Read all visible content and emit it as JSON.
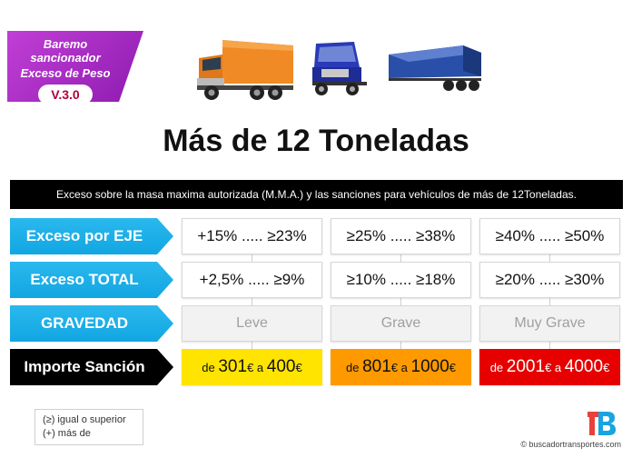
{
  "badge": {
    "line1": "Baremo sancionador",
    "line2": "Exceso de  Peso",
    "version": "V.3.0"
  },
  "title": "Más de 12 Toneladas",
  "description": "Exceso sobre la masa maxima autorizada (M.M.A.) y las sanciones para vehículos de más de 12Toneladas.",
  "rows": {
    "eje": {
      "label": "Exceso por EJE",
      "values": [
        "+15% ..... ≥23%",
        "≥25% ..... ≥38%",
        "≥40% ..... ≥50%"
      ]
    },
    "total": {
      "label": "Exceso TOTAL",
      "values": [
        "+2,5% ..... ≥9%",
        "≥10% ..... ≥18%",
        "≥20% ..... ≥30%"
      ]
    },
    "gravedad": {
      "label": "GRAVEDAD",
      "values": [
        "Leve",
        "Grave",
        "Muy Grave"
      ]
    },
    "importe": {
      "label": "Importe Sanción",
      "fines": [
        {
          "prefix": "de",
          "from": "301",
          "cur1": "€",
          "mid": "a",
          "to": "400",
          "cur2": "€"
        },
        {
          "prefix": "de",
          "from": "801",
          "cur1": "€",
          "mid": "a",
          "to": "1000",
          "cur2": "€"
        },
        {
          "prefix": "de",
          "from": "2001",
          "cur1": "€",
          "mid": "a",
          "to": "4000",
          "cur2": "€"
        }
      ]
    }
  },
  "legend": {
    "line1": "(≥) igual o superior",
    "line2": "(+) más de"
  },
  "copyright": "© buscadortransportes.com",
  "colors": {
    "badge": "#a12cc4",
    "label_blue": "#12a6e2",
    "fine_leve": "#ffe400",
    "fine_grave": "#ff9900",
    "fine_muy_grave": "#e60000"
  },
  "icons": [
    "orange-truck-icon",
    "blue-tractor-icon",
    "blue-trailer-icon",
    "buscadortransportes-logo-icon"
  ]
}
